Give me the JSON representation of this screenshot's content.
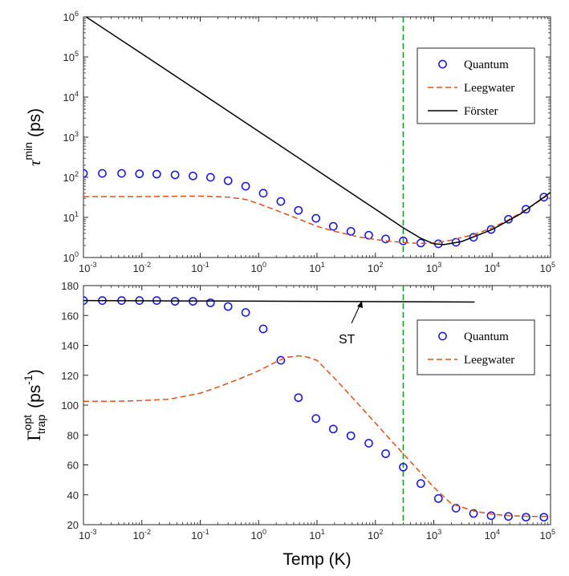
{
  "colors": {
    "quantum": "#1010e6",
    "leegwater": "#d95319",
    "forster": "#000000",
    "vline": "#1a9a1a"
  },
  "chart_data": [
    {
      "type": "line",
      "xscale": "log",
      "yscale": "log",
      "xlim": [
        0.001,
        100000
      ],
      "ylim": [
        1,
        1000000
      ],
      "xticks": [
        "10-3",
        "10-2",
        "10-1",
        "100",
        "101",
        "102",
        "103",
        "104",
        "105"
      ],
      "yticks": [
        "100",
        "101",
        "102",
        "103",
        "104",
        "105",
        "106"
      ],
      "xlabel": "",
      "ylabel_main": "τ",
      "ylabel_sup": "min",
      "ylabel_unit": "(ps)",
      "vline_x": 300,
      "legend_position": "top-right",
      "series": [
        {
          "name": "Quantum",
          "style": "markers-circle",
          "x": [
            0.001,
            0.0021,
            0.0045,
            0.0091,
            0.018,
            0.037,
            0.075,
            0.15,
            0.3,
            0.6,
            1.2,
            2.4,
            4.8,
            9.6,
            19,
            38,
            77,
            150,
            300,
            600,
            1200,
            2400,
            4800,
            9600,
            19000,
            38000,
            77000
          ],
          "y": [
            125,
            125,
            125,
            122,
            120,
            115,
            108,
            100,
            82,
            60,
            40,
            25,
            15,
            9.5,
            6,
            4.5,
            3.6,
            2.9,
            2.6,
            2.3,
            2.2,
            2.4,
            3.2,
            5,
            9,
            16,
            32
          ]
        },
        {
          "name": "Leegwater",
          "style": "dashed",
          "x": [
            0.001,
            0.003,
            0.01,
            0.03,
            0.1,
            0.3,
            0.6,
            1,
            2,
            5,
            10,
            20,
            50,
            100,
            200,
            400,
            700,
            1000,
            2000,
            5000,
            10000,
            20000,
            50000,
            100000
          ],
          "y": [
            33,
            33,
            33,
            33.5,
            34,
            32,
            28,
            22,
            15,
            9,
            6,
            4.5,
            3.3,
            2.8,
            2.5,
            2.3,
            2.25,
            2.3,
            2.7,
            3.8,
            5.5,
            9,
            20,
            40
          ]
        },
        {
          "name": "Förster",
          "style": "solid",
          "x": [
            0.001,
            0.01,
            0.1,
            1,
            10,
            100,
            300,
            600,
            1000,
            1500,
            3000,
            10000,
            30000,
            100000
          ],
          "y": [
            1100000,
            120000,
            13000,
            1400,
            150,
            16,
            5.5,
            3,
            2.2,
            2.1,
            2.5,
            5,
            12,
            42
          ]
        }
      ]
    },
    {
      "type": "line",
      "xscale": "log",
      "yscale": "linear",
      "xlim": [
        0.001,
        100000
      ],
      "ylim": [
        20,
        180
      ],
      "xticks": [
        "10-3",
        "10-2",
        "10-1",
        "100",
        "101",
        "102",
        "103",
        "104",
        "105"
      ],
      "yticks": [
        "20",
        "40",
        "60",
        "80",
        "100",
        "120",
        "140",
        "160",
        "180"
      ],
      "xlabel": "Temp (K)",
      "ylabel_main": "Γ",
      "ylabel_sup": "opt",
      "ylabel_sub": "trap",
      "ylabel_unit_open": "(ps",
      "ylabel_unit_sup": "-1",
      "ylabel_unit_close": ")",
      "vline_x": 300,
      "legend_position": "right",
      "annotation": "ST",
      "series": [
        {
          "name": "Quantum",
          "style": "markers-circle",
          "x": [
            0.001,
            0.0021,
            0.0045,
            0.0091,
            0.018,
            0.037,
            0.075,
            0.15,
            0.3,
            0.6,
            1.2,
            2.4,
            4.8,
            9.6,
            19,
            38,
            77,
            150,
            300,
            600,
            1200,
            2400,
            4800,
            9600,
            19000,
            38000,
            77000
          ],
          "y": [
            170,
            170,
            170,
            170,
            170,
            169.5,
            169.5,
            168.5,
            166,
            162,
            151,
            130,
            105,
            91,
            84,
            79.5,
            74.5,
            67.5,
            58.5,
            47.5,
            37.5,
            31,
            27.5,
            26,
            25.5,
            25,
            25
          ]
        },
        {
          "name": "Leegwater",
          "style": "dashed",
          "x": [
            0.001,
            0.003,
            0.01,
            0.03,
            0.1,
            0.2,
            0.5,
            1,
            2,
            3,
            5,
            7,
            10,
            20,
            50,
            100,
            200,
            500,
            1000,
            2000,
            5000,
            10000,
            20000,
            50000,
            100000
          ],
          "y": [
            102.5,
            102.5,
            103,
            104,
            108,
            112,
            118,
            123,
            129,
            132,
            133,
            132,
            130,
            118,
            101,
            88,
            75,
            58,
            45,
            34,
            29,
            27,
            26,
            25.5,
            25.5
          ]
        },
        {
          "name": "ST",
          "style": "solid",
          "x": [
            0.001,
            5000
          ],
          "y": [
            170,
            169
          ]
        }
      ]
    }
  ]
}
